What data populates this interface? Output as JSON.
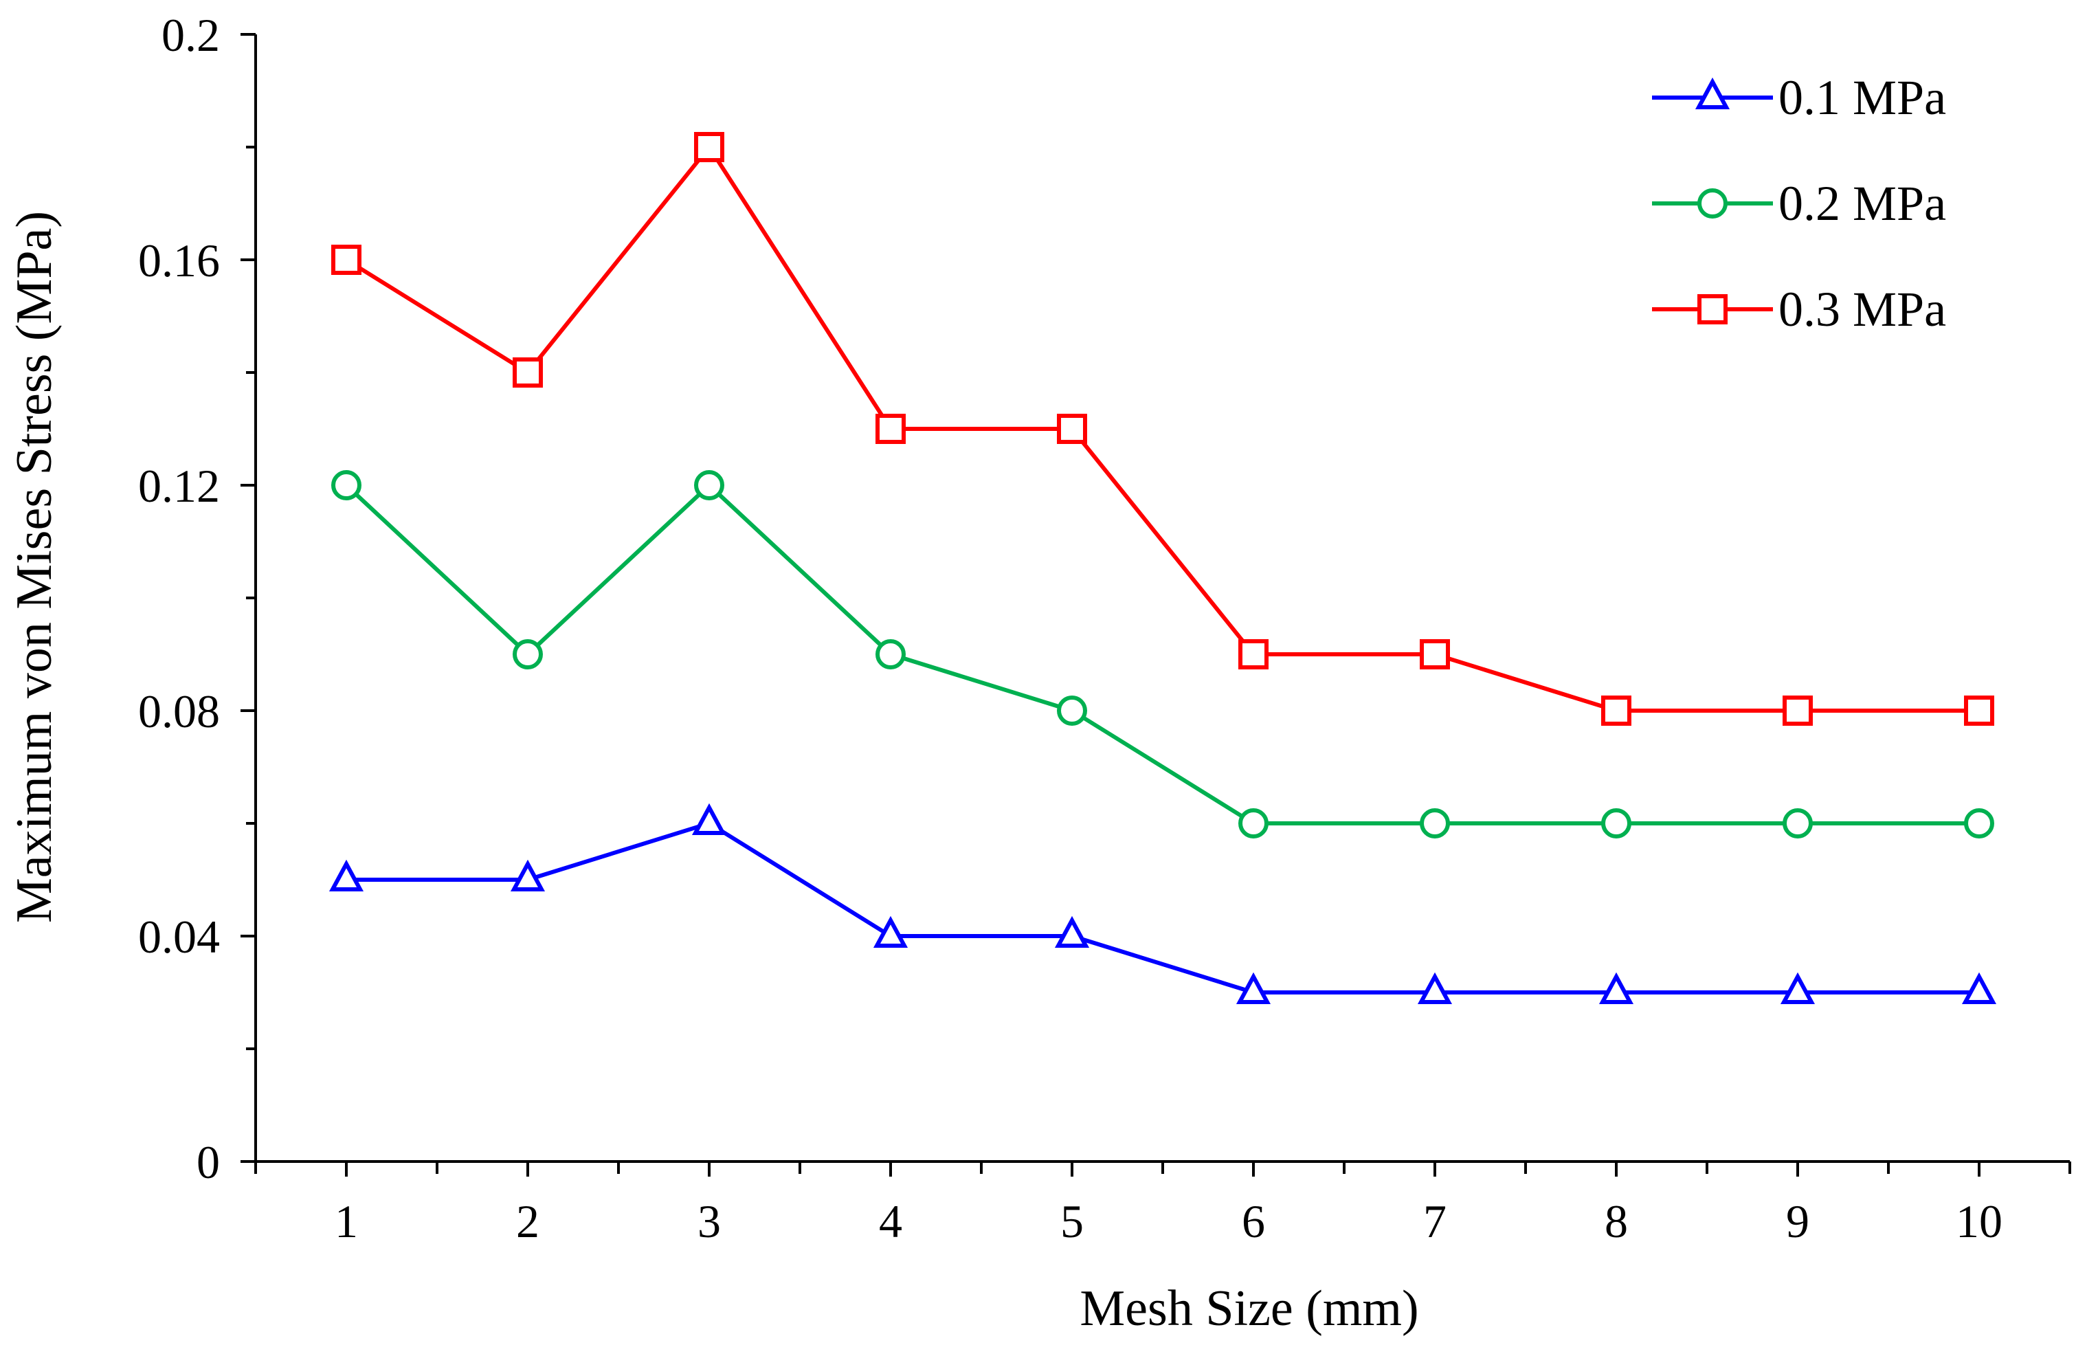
{
  "chart_data": {
    "type": "line",
    "title": "",
    "xlabel": "Mesh Size (mm)",
    "ylabel": "Maximum von Mises Stress (MPa)",
    "x": [
      1,
      2,
      3,
      4,
      5,
      6,
      7,
      8,
      9,
      10
    ],
    "xlim": [
      0.5,
      10.5
    ],
    "ylim": [
      0,
      0.2
    ],
    "x_ticks": [
      1,
      2,
      3,
      4,
      5,
      6,
      7,
      8,
      9,
      10
    ],
    "x_tick_labels": [
      "1",
      "2",
      "3",
      "4",
      "5",
      "6",
      "7",
      "8",
      "9",
      "10"
    ],
    "y_ticks": [
      0,
      0.04,
      0.08,
      0.12,
      0.16,
      0.2
    ],
    "y_tick_labels": [
      "0",
      "0.04",
      "0.08",
      "0.12",
      "0.16",
      "0.2"
    ],
    "grid": false,
    "legend_position": "top-right",
    "series": [
      {
        "name": "0.1 MPa",
        "color": "#0000ff",
        "marker": "triangle",
        "values": [
          0.05,
          0.05,
          0.06,
          0.04,
          0.04,
          0.03,
          0.03,
          0.03,
          0.03,
          0.03
        ]
      },
      {
        "name": "0.2 MPa",
        "color": "#00b050",
        "marker": "circle",
        "values": [
          0.12,
          0.09,
          0.12,
          0.09,
          0.08,
          0.06,
          0.06,
          0.06,
          0.06,
          0.06
        ]
      },
      {
        "name": "0.3 MPa",
        "color": "#ff0000",
        "marker": "square",
        "values": [
          0.16,
          0.14,
          0.18,
          0.13,
          0.13,
          0.09,
          0.09,
          0.08,
          0.08,
          0.08
        ]
      }
    ]
  }
}
